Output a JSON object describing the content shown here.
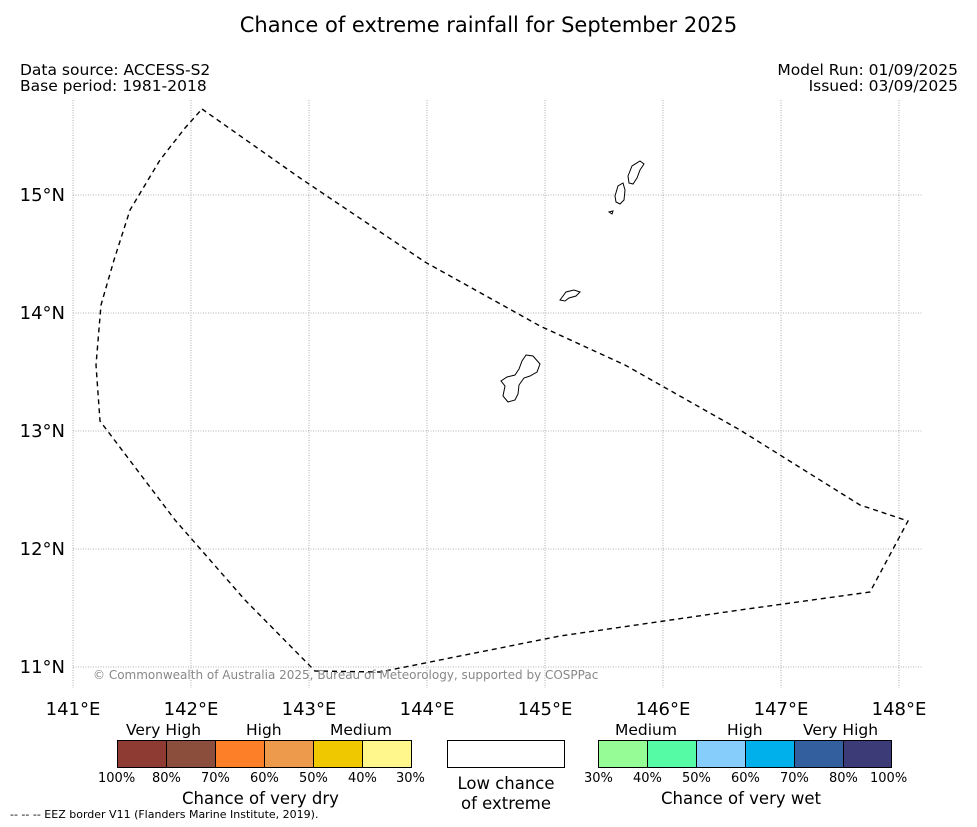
{
  "title": "Chance of extreme rainfall for September 2025",
  "meta": {
    "data_source": "Data source: ACCESS-S2",
    "base_period": "Base period: 1981-2018",
    "model_run": "Model Run: 01/09/2025",
    "issued": "Issued: 03/09/2025"
  },
  "map": {
    "lat_labels": [
      "15°N",
      "14°N",
      "13°N",
      "12°N",
      "11°N"
    ],
    "lon_labels": [
      "141°E",
      "142°E",
      "143°E",
      "144°E",
      "145°E",
      "146°E",
      "147°E",
      "148°E"
    ],
    "copyright": "© Commonwealth of Australia 2025, Bureau of Meteorology, supported by COSPPac"
  },
  "legend": {
    "dry": {
      "levels": [
        "Very High",
        "High",
        "Medium"
      ],
      "colors": [
        "#8e3b33",
        "#8b4d3c",
        "#fd7f28",
        "#ee9a4d",
        "#f0c800",
        "#fff68c"
      ],
      "ticks": [
        "100%",
        "80%",
        "70%",
        "60%",
        "50%",
        "40%",
        "30%"
      ],
      "caption": "Chance of very dry"
    },
    "low": {
      "caption_line1": "Low chance",
      "caption_line2": "of extreme",
      "color": "#ffffff"
    },
    "wet": {
      "levels": [
        "Medium",
        "High",
        "Very High"
      ],
      "colors": [
        "#96fc96",
        "#55fca5",
        "#87cdfc",
        "#00b0eb",
        "#345f9f",
        "#3c3b78"
      ],
      "ticks": [
        "30%",
        "40%",
        "50%",
        "60%",
        "70%",
        "80%",
        "100%"
      ],
      "caption": "Chance of very wet"
    }
  },
  "footnote": "--  --  -- EEZ border V11 (Flanders Marine Institute, 2019)."
}
